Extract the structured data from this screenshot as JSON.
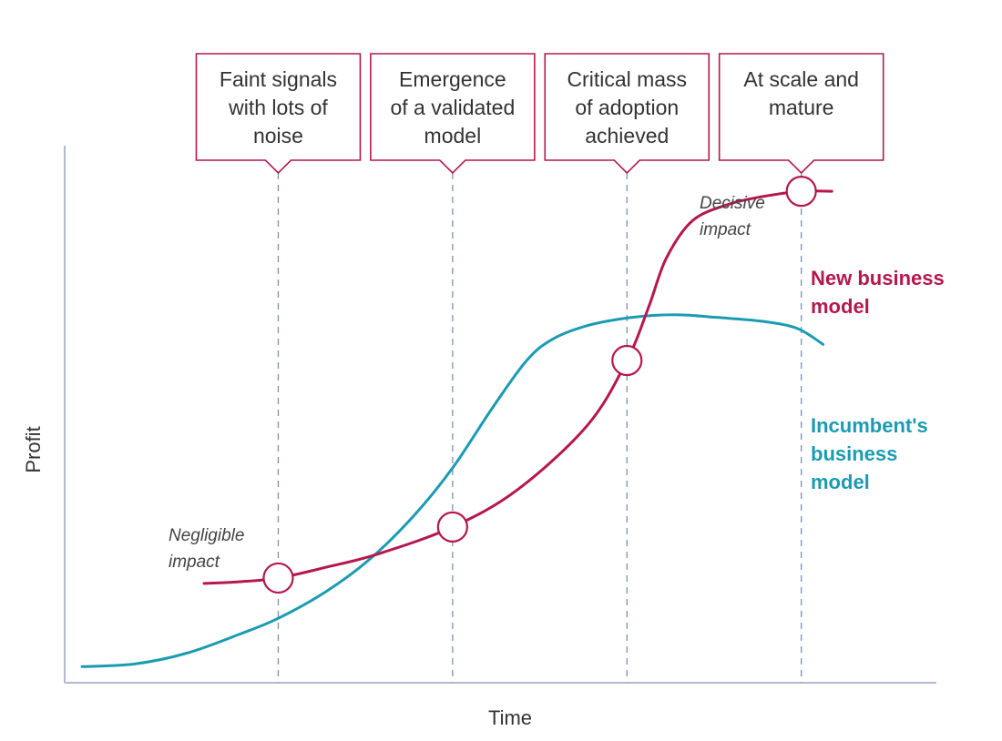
{
  "chart_data": {
    "type": "line",
    "xlabel": "Time",
    "ylabel": "Profit",
    "xlim": [
      0,
      100
    ],
    "ylim": [
      0,
      100
    ],
    "colors": {
      "new_business_model": "#b5174e",
      "incumbent": "#1b9bb3",
      "box": "#b5174e",
      "axis": "#9aa3c0",
      "guide": "#7d8fb3"
    },
    "stages": [
      {
        "x": 24.5,
        "lines": [
          "Faint signals",
          "with lots of",
          "noise"
        ]
      },
      {
        "x": 44.5,
        "lines": [
          "Emergence",
          "of a validated",
          "model"
        ]
      },
      {
        "x": 64.5,
        "lines": [
          "Critical mass",
          "of adoption",
          "achieved"
        ]
      },
      {
        "x": 84.5,
        "lines": [
          "At scale and",
          "mature"
        ]
      }
    ],
    "annotations": [
      {
        "lines": [
          "Negligible",
          "impact"
        ]
      },
      {
        "lines": [
          "Decisive",
          "impact"
        ]
      }
    ],
    "series": [
      {
        "key": "new_business_model",
        "name_lines": [
          "New business",
          "model"
        ],
        "points": [
          [
            16,
            18.5
          ],
          [
            20,
            18.8
          ],
          [
            24.5,
            19.5
          ],
          [
            30,
            21.5
          ],
          [
            36,
            24
          ],
          [
            44.5,
            29
          ],
          [
            52,
            36
          ],
          [
            60,
            48
          ],
          [
            64.5,
            60
          ],
          [
            67,
            70
          ],
          [
            69,
            79
          ],
          [
            72,
            86
          ],
          [
            76,
            89
          ],
          [
            80,
            90.5
          ],
          [
            84.5,
            91.5
          ],
          [
            88,
            91.5
          ]
        ],
        "markers": [
          24.5,
          44.5,
          64.5,
          84.5
        ]
      },
      {
        "key": "incumbent",
        "name_lines": [
          "Incumbent's",
          "business",
          "model"
        ],
        "points": [
          [
            2,
            3
          ],
          [
            8,
            3.5
          ],
          [
            14,
            5.5
          ],
          [
            20,
            9
          ],
          [
            24.5,
            12
          ],
          [
            30,
            17
          ],
          [
            35,
            23
          ],
          [
            40,
            31
          ],
          [
            44.5,
            40
          ],
          [
            49,
            51
          ],
          [
            53,
            60
          ],
          [
            56,
            64
          ],
          [
            60,
            66.5
          ],
          [
            65,
            68
          ],
          [
            70,
            68.5
          ],
          [
            75,
            68
          ],
          [
            80,
            67.3
          ],
          [
            84,
            66
          ],
          [
            87,
            63
          ]
        ]
      }
    ]
  }
}
